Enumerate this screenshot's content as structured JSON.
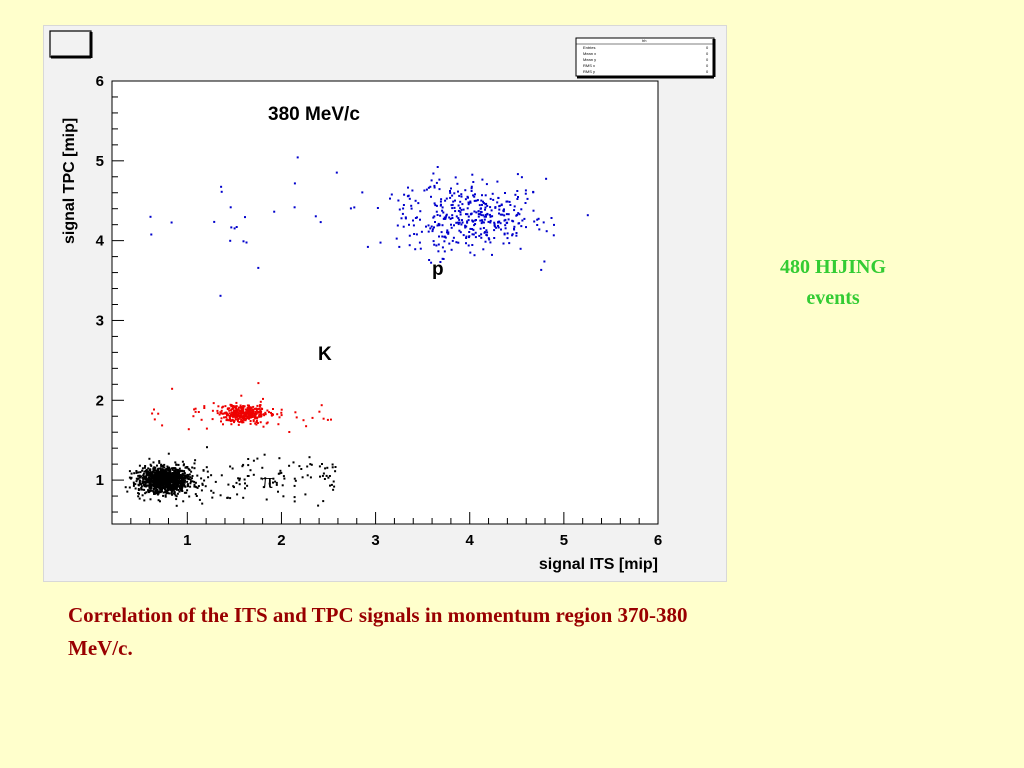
{
  "side_note": {
    "line1": "480 HIJING",
    "line2": "events"
  },
  "caption": "Correlation of the ITS and TPC signals in momentum region 370-380 MeV/c.",
  "stats_box": {
    "title": "hh",
    "rows": [
      {
        "label": "Entries",
        "value": "0"
      },
      {
        "label": "Mean x",
        "value": "0"
      },
      {
        "label": "Mean y",
        "value": "0"
      },
      {
        "label": "RMS x",
        "value": "0"
      },
      {
        "label": "RMS y",
        "value": "0"
      }
    ]
  },
  "chart_data": {
    "type": "scatter",
    "title": "380 MeV/c",
    "xlabel": "signal ITS [mip]",
    "ylabel": "signal TPC [mip]",
    "xlim": [
      0.2,
      6
    ],
    "ylim": [
      0.45,
      6
    ],
    "xticks": [
      "1",
      "2",
      "3",
      "4",
      "5",
      "6"
    ],
    "yticks": [
      "1",
      "2",
      "3",
      "4",
      "5",
      "6"
    ],
    "grid": false,
    "annotations": [
      {
        "text": "380 MeV/c",
        "x": 2.6,
        "y": 5.5
      },
      {
        "text": "p",
        "x": 3.7,
        "y": 3.8
      },
      {
        "text": "K",
        "x": 2.5,
        "y": 2.35
      },
      {
        "text": "π",
        "x": 1.8,
        "y": 0.75
      }
    ],
    "series": [
      {
        "color": "#000000",
        "center": [
          0.75,
          1.0
        ],
        "spread": [
          0.12,
          0.08
        ],
        "n": 1400,
        "range": [
          0.5,
          2.6
        ]
      },
      {
        "color": "#ee0000",
        "center": [
          1.6,
          1.83
        ],
        "spread": [
          0.13,
          0.06
        ],
        "n": 380,
        "range": [
          0.6,
          2.55
        ]
      },
      {
        "color": "#0000cc",
        "center": [
          4.0,
          4.3
        ],
        "spread": [
          0.35,
          0.22
        ],
        "n": 420,
        "range": [
          0.5,
          5.2
        ]
      }
    ]
  }
}
